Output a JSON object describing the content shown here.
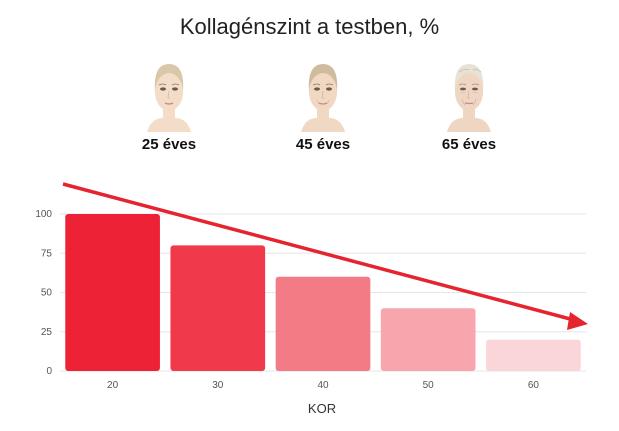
{
  "title": "Kollagénszint a testben, %",
  "faces": [
    {
      "label": "25 éves",
      "icon": "young-face-icon"
    },
    {
      "label": "45 éves",
      "icon": "middle-aged-face-icon"
    },
    {
      "label": "65 éves",
      "icon": "elderly-face-icon"
    }
  ],
  "colors": {
    "arrow": "#e5242f",
    "grid": "#e6e6e6",
    "bars": [
      "#ee2236",
      "#f03a4b",
      "#f37b85",
      "#f8a6ae",
      "#fbd6d9"
    ]
  },
  "chart_data": {
    "type": "bar",
    "categories": [
      "20",
      "30",
      "40",
      "50",
      "60"
    ],
    "values": [
      100,
      80,
      60,
      40,
      20
    ],
    "xlabel": "KOR",
    "ylabel": "",
    "ylim": [
      0,
      100
    ],
    "yticks": [
      "0",
      "25",
      "50",
      "75",
      "100"
    ],
    "grid": true,
    "annotations": [
      "decreasing trend arrow"
    ]
  }
}
